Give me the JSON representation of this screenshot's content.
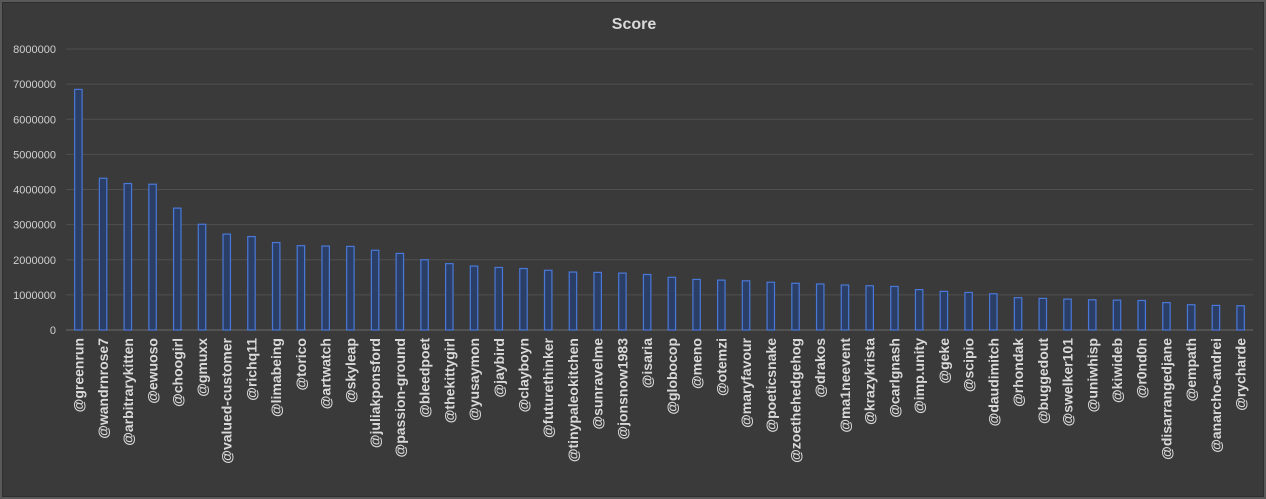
{
  "chart_data": {
    "type": "bar",
    "title": "Score",
    "xlabel": "",
    "ylabel": "",
    "ylim": [
      0,
      8000000
    ],
    "yticks": [
      0,
      1000000,
      2000000,
      3000000,
      4000000,
      5000000,
      6000000,
      7000000,
      8000000
    ],
    "grid": true,
    "legend": "none",
    "bar_fill": "#2b3f66",
    "bar_edge": "#4a78d8",
    "categories": [
      "@greenrun",
      "@wandrnrose7",
      "@arbitrarykitten",
      "@ewuoso",
      "@choogirl",
      "@gmuxx",
      "@valued-customer",
      "@richq11",
      "@limabeing",
      "@torico",
      "@artwatch",
      "@skyleap",
      "@juliakponsford",
      "@passion-ground",
      "@bleedpoet",
      "@thekittygirl",
      "@yusaymon",
      "@jaybird",
      "@clayboyn",
      "@futurethinker",
      "@tinypaleokitchen",
      "@sunravelme",
      "@jonsnow1983",
      "@isaria",
      "@globocop",
      "@meno",
      "@otemzi",
      "@maryfavour",
      "@poeticsnake",
      "@zoethehedgehog",
      "@drakos",
      "@ma1neevent",
      "@krazykrista",
      "@carlgnash",
      "@imp.unity",
      "@geke",
      "@scipio",
      "@daudimitch",
      "@rhondak",
      "@buggedout",
      "@swelker101",
      "@uniwhisp",
      "@kiwideb",
      "@r0nd0n",
      "@disarrangedjane",
      "@empath",
      "@anarcho-andrei",
      "@rycharde"
    ],
    "values": [
      6850000,
      4320000,
      4170000,
      4150000,
      3470000,
      3010000,
      2730000,
      2660000,
      2490000,
      2400000,
      2390000,
      2380000,
      2270000,
      2180000,
      2000000,
      1890000,
      1820000,
      1780000,
      1750000,
      1700000,
      1650000,
      1640000,
      1620000,
      1580000,
      1500000,
      1440000,
      1420000,
      1400000,
      1360000,
      1330000,
      1310000,
      1280000,
      1260000,
      1240000,
      1150000,
      1100000,
      1070000,
      1030000,
      920000,
      900000,
      880000,
      860000,
      850000,
      840000,
      780000,
      720000,
      700000,
      690000
    ]
  }
}
